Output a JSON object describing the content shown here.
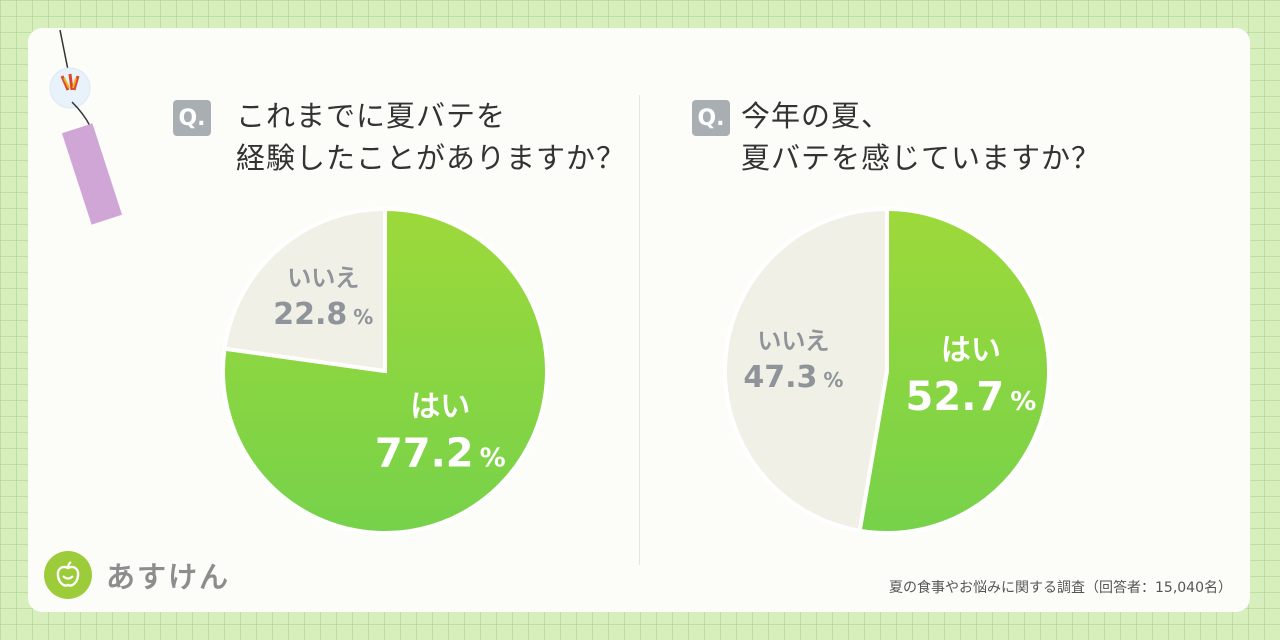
{
  "brand": {
    "name": "あすけん",
    "logo_icon": "apple-logo-icon"
  },
  "footnote": "夏の食事やお悩みに関する調査（回答者：15,040名）",
  "questions": [
    {
      "badge": "Q.",
      "line1": "これまでに夏バテを",
      "line2": "経験したことがありますか？"
    },
    {
      "badge": "Q.",
      "line1": "今年の夏、",
      "line2": "夏バテを感じていますか？"
    }
  ],
  "colors": {
    "yes": "#8fd63a",
    "no": "#f0f0e6",
    "yes_text": "#ffffff",
    "no_text": "#8e9499"
  },
  "chart_data": [
    {
      "type": "pie",
      "title": "これまでに夏バテを経験したことがありますか？",
      "unit": "%",
      "slices": [
        {
          "label": "はい",
          "value": 77.2,
          "display": "77.2"
        },
        {
          "label": "いいえ",
          "value": 22.8,
          "display": "22.8"
        }
      ]
    },
    {
      "type": "pie",
      "title": "今年の夏、夏バテを感じていますか？",
      "unit": "%",
      "slices": [
        {
          "label": "はい",
          "value": 52.7,
          "display": "52.7"
        },
        {
          "label": "いいえ",
          "value": 47.3,
          "display": "47.3"
        }
      ]
    }
  ]
}
